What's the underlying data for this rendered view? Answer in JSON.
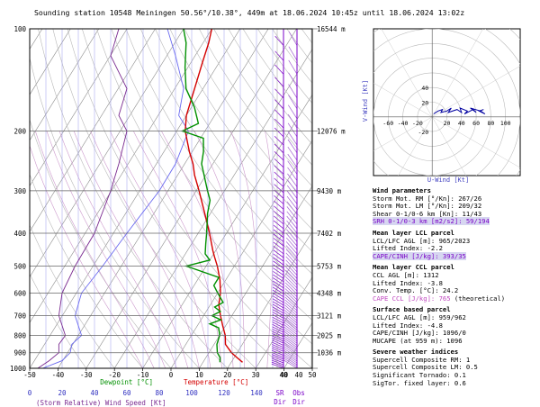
{
  "title": "Sounding station 10548 Meiningen 50.56°/10.38°, 449m at 18.06.2024 10:45z until 18.06.2024 13:02z",
  "colors": {
    "temperature": "#d40000",
    "dewpoint": "#009000",
    "wind": "#7a00c8",
    "hodo": "#0000a0",
    "grid": "#9999ee",
    "dry": "#888888",
    "moist": "#cc99cc"
  },
  "chart_data": [
    {
      "type": "line",
      "subtype": "skew-T log-P sounding",
      "xlabel_dewpoint": "Dewpoint [°C]",
      "xlabel_temperature": "Temperature [°C]",
      "xlabel_wind": "(Storm Relative) Wind Speed [Kt]",
      "xlabel_dir": [
        "SR Dir",
        "Obs Dir"
      ],
      "x_ticks": [
        "-50",
        "-40",
        "-30",
        "-20",
        "-10",
        "0",
        "10",
        "20",
        "30",
        "40",
        "50"
      ],
      "wind_ticks": [
        "0",
        "20",
        "40",
        "60",
        "80",
        "100",
        "120",
        "140"
      ],
      "dir_ticks": [
        "40",
        "40"
      ],
      "pressure_ticks": [
        "100",
        "200",
        "300",
        "400",
        "500",
        "600",
        "700",
        "800",
        "900",
        "1000"
      ],
      "height_labels": [
        {
          "p": 100,
          "label": "16544 m"
        },
        {
          "p": 200,
          "label": "12076 m"
        },
        {
          "p": 300,
          "label": "9430 m"
        },
        {
          "p": 400,
          "label": "7402 m"
        },
        {
          "p": 500,
          "label": "5753 m"
        },
        {
          "p": 600,
          "label": "4348 m"
        },
        {
          "p": 700,
          "label": "3121 m"
        },
        {
          "p": 800,
          "label": "2025 m"
        },
        {
          "p": 900,
          "label": "1036 m"
        }
      ],
      "xlim": [
        -50,
        50
      ],
      "ylim": [
        1000,
        100
      ],
      "series": [
        {
          "name": "Temperature",
          "p": [
            960,
            930,
            900,
            850,
            800,
            750,
            700,
            650,
            600,
            550,
            500,
            470,
            450,
            400,
            350,
            300,
            270,
            250,
            230,
            200,
            180,
            150,
            125,
            110,
            100
          ],
          "t": [
            24,
            21,
            18,
            14,
            12,
            9,
            6,
            3,
            1,
            -2,
            -6,
            -9,
            -11,
            -16,
            -22,
            -29,
            -34,
            -37,
            -41,
            -47,
            -50,
            -53,
            -56,
            -58,
            -60
          ]
        },
        {
          "name": "Dewpoint",
          "p": [
            960,
            930,
            900,
            850,
            800,
            760,
            740,
            720,
            700,
            680,
            660,
            640,
            600,
            570,
            540,
            500,
            480,
            460,
            430,
            400,
            350,
            320,
            300,
            250,
            230,
            210,
            200,
            190,
            170,
            150,
            130,
            110,
            100
          ],
          "td": [
            16,
            15,
            13,
            11,
            10,
            8,
            4,
            7,
            3,
            5,
            2,
            4,
            0,
            -3,
            -3,
            -17,
            -10,
            -13,
            -15,
            -17,
            -21,
            -23,
            -26,
            -34,
            -36,
            -39,
            -48,
            -44,
            -49,
            -56,
            -61,
            -66,
            -70
          ]
        },
        {
          "name": "Storm relative wind speed",
          "p": [
            1000,
            950,
            900,
            850,
            800,
            700,
            600,
            500,
            400,
            300,
            250,
            200,
            180,
            150,
            120,
            100
          ],
          "v": [
            5,
            12,
            18,
            18,
            22,
            18,
            20,
            28,
            40,
            50,
            55,
            60,
            55,
            60,
            50,
            55
          ]
        },
        {
          "name": "Wind speed",
          "p": [
            1000,
            950,
            900,
            850,
            800,
            700,
            600,
            500,
            400,
            300,
            250,
            200,
            180,
            150,
            120,
            100
          ],
          "v": [
            8,
            20,
            25,
            26,
            32,
            28,
            32,
            45,
            60,
            80,
            90,
            98,
            92,
            95,
            90,
            85
          ]
        }
      ]
    },
    {
      "type": "scatter",
      "subtype": "hodograph",
      "xlabel": "U-Wind [Kt]",
      "ylabel": "V-Wind [Kt]",
      "x_ticks": [
        "-60",
        "-40",
        "-20",
        "20",
        "40",
        "60",
        "80",
        "100"
      ],
      "y_ticks": [
        "40",
        "20",
        "-20"
      ],
      "xlim": [
        -80,
        120
      ],
      "ylim": [
        -80,
        120
      ],
      "u": [
        2,
        8,
        14,
        12,
        20,
        26,
        22,
        34,
        40,
        38,
        48,
        44,
        56,
        60,
        52,
        66,
        72,
        64,
        70
      ],
      "v": [
        4,
        8,
        10,
        6,
        8,
        12,
        6,
        10,
        6,
        12,
        8,
        4,
        10,
        6,
        12,
        8,
        4,
        8,
        10
      ]
    }
  ],
  "panel": {
    "wind": {
      "heading": "Wind parameters",
      "lines": [
        "Storm Mot. RM [°/Kn]: 267/26",
        "Storm Mot. LM [°/Kn]: 209/32",
        "Shear 0-1/0-6 km [Kn]: 11/43"
      ],
      "srh": "SRH 0-1/0-3 km [m2/s2]: 59/194"
    },
    "lcl": {
      "heading": "Mean layer LCL parcel",
      "lines": [
        "LCL/LFC AGL [m]: 965/2023",
        "Lifted Index: -2.2"
      ],
      "cape": "CAPE/CINH [J/kg]: 393/35"
    },
    "ccl": {
      "heading": "Mean layer CCL parcel",
      "lines": [
        "CCL AGL [m]: 1312",
        "Lifted Index: -3.8",
        "Conv. Temp. [°C]: 24.2"
      ],
      "cape_a": "CAPE CCL [J/kg]: 765",
      "cape_b": " (theoretical)"
    },
    "surface": {
      "heading": "Surface based parcel",
      "lines": [
        "LCL/LFC AGL [m]: 959/962",
        "Lifted Index: -4.8",
        "CAPE/CINH [J/kg]: 1096/0",
        "MUCAPE (at 959 m): 1096"
      ]
    },
    "severe": {
      "heading": "Severe weather indices",
      "lines": [
        "Supercell Composite RM: 1",
        "Supercell Composite LM: 0.5",
        "Significant Tornado: 0.1",
        "SigTor. fixed layer: 0.6"
      ]
    }
  }
}
